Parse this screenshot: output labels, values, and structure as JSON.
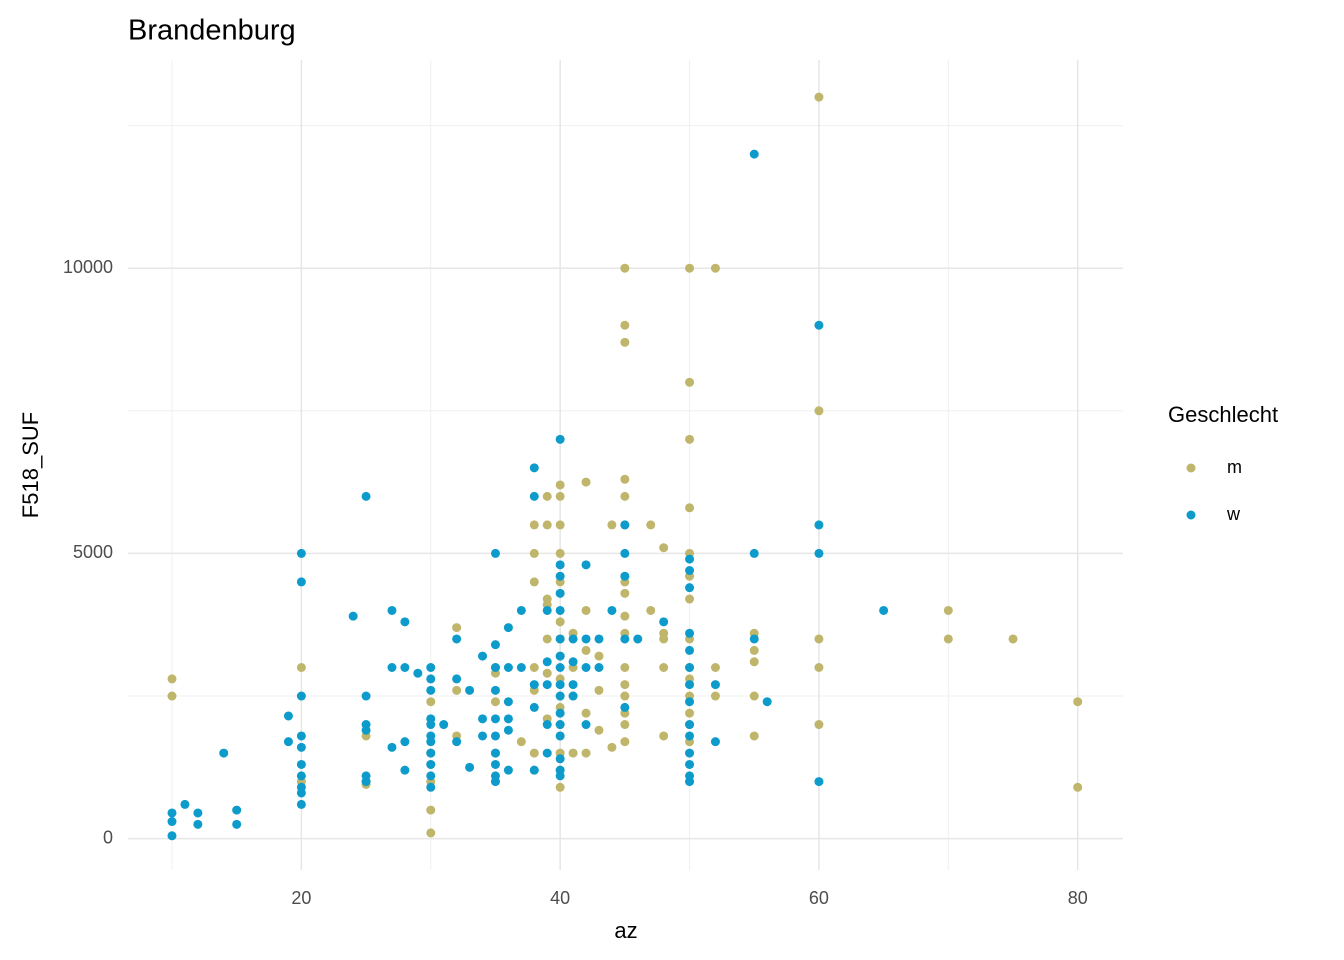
{
  "chart_data": {
    "type": "scatter",
    "title": "Brandenburg",
    "x_label": "az",
    "y_label": "F518_SUF",
    "legend_title": "Geschlecht",
    "xlim": [
      6.6,
      83.5
    ],
    "ylim": [
      -550,
      13650
    ],
    "xticks": [
      20,
      40,
      60,
      80
    ],
    "yticks": [
      0,
      5000,
      10000
    ],
    "x_minor_grid": [
      10,
      30,
      50,
      70
    ],
    "y_minor_grid": [
      2500,
      7500,
      12500
    ],
    "grid": true,
    "legend": "right",
    "series": [
      {
        "name": "m",
        "color": "#BFB56B",
        "x": [
          10,
          10,
          20,
          20,
          25,
          25,
          25,
          30,
          30,
          30,
          30,
          30,
          30,
          32,
          32,
          32,
          35,
          35,
          35,
          35,
          37,
          38,
          38,
          38,
          38,
          38,
          38,
          38,
          39,
          39,
          39,
          39,
          39,
          39,
          39,
          40,
          40,
          40,
          40,
          40,
          40,
          40,
          40,
          40,
          40,
          40,
          40,
          40,
          40,
          40,
          40,
          41,
          41,
          41,
          41,
          42,
          42,
          42,
          42,
          42,
          43,
          43,
          43,
          44,
          44,
          45,
          45,
          45,
          45,
          45,
          45,
          45,
          45,
          45,
          45,
          45,
          45,
          45,
          45,
          45,
          45,
          47,
          47,
          48,
          48,
          48,
          48,
          48,
          50,
          50,
          50,
          50,
          50,
          50,
          50,
          50,
          50,
          50,
          50,
          50,
          50,
          50,
          52,
          52,
          52,
          55,
          55,
          55,
          55,
          55,
          60,
          60,
          60,
          60,
          60,
          70,
          70,
          75,
          80,
          80
        ],
        "values": [
          2800,
          2500,
          3000,
          1000,
          1800,
          1000,
          950,
          2400,
          1500,
          1000,
          500,
          100,
          1300,
          3700,
          2600,
          1800,
          2900,
          2400,
          1500,
          3000,
          1700,
          5500,
          5000,
          4500,
          3000,
          2600,
          1500,
          1200,
          6000,
          5500,
          4200,
          4100,
          3500,
          2900,
          2100,
          6200,
          6000,
          5500,
          5000,
          4500,
          3800,
          3500,
          3200,
          2800,
          2500,
          2300,
          2000,
          1800,
          1500,
          1200,
          900,
          3600,
          3000,
          2500,
          1500,
          6250,
          4000,
          3300,
          2200,
          1500,
          3200,
          2600,
          1900,
          5500,
          1600,
          10000,
          9000,
          8700,
          6300,
          6000,
          5500,
          4500,
          4300,
          3900,
          3600,
          3000,
          2700,
          2500,
          2200,
          2000,
          1700,
          5500,
          4000,
          5100,
          3600,
          3500,
          3000,
          1800,
          10000,
          8000,
          7000,
          5800,
          5000,
          4600,
          4200,
          3500,
          3000,
          2800,
          2500,
          2200,
          2000,
          1700,
          10000,
          3000,
          2500,
          3600,
          3300,
          3100,
          2500,
          1800,
          13000,
          7500,
          3500,
          3000,
          2000,
          4000,
          3500,
          3500,
          2400,
          900
        ]
      },
      {
        "name": "w",
        "color": "#0C9BCB",
        "x": [
          10,
          10,
          10,
          11,
          12,
          12,
          14,
          15,
          15,
          19,
          19,
          20,
          20,
          20,
          20,
          20,
          20,
          20,
          20,
          20,
          20,
          24,
          25,
          25,
          25,
          25,
          25,
          25,
          27,
          27,
          27,
          28,
          28,
          28,
          28,
          29,
          30,
          30,
          30,
          30,
          30,
          30,
          30,
          30,
          30,
          30,
          30,
          31,
          32,
          32,
          32,
          33,
          33,
          34,
          34,
          34,
          35,
          35,
          35,
          35,
          35,
          35,
          35,
          35,
          35,
          35,
          36,
          36,
          36,
          36,
          36,
          36,
          37,
          37,
          38,
          38,
          38,
          38,
          38,
          39,
          39,
          39,
          39,
          39,
          40,
          40,
          40,
          40,
          40,
          40,
          40,
          40,
          40,
          40,
          40,
          40,
          40,
          40,
          40,
          40,
          41,
          41,
          41,
          41,
          42,
          42,
          42,
          42,
          43,
          43,
          44,
          45,
          45,
          45,
          45,
          45,
          46,
          48,
          50,
          50,
          50,
          50,
          50,
          50,
          50,
          50,
          50,
          50,
          50,
          50,
          50,
          50,
          52,
          52,
          55,
          55,
          55,
          56,
          60,
          60,
          60,
          60,
          65
        ],
        "values": [
          450,
          300,
          50,
          600,
          450,
          250,
          1500,
          500,
          250,
          2150,
          1700,
          5000,
          4500,
          2500,
          1800,
          1600,
          1300,
          1100,
          900,
          800,
          600,
          3900,
          6000,
          2500,
          2000,
          1900,
          1100,
          1000,
          4000,
          3000,
          1600,
          3800,
          3000,
          1700,
          1200,
          2900,
          3000,
          2800,
          2600,
          2100,
          2000,
          1800,
          1700,
          1500,
          1300,
          1100,
          900,
          2000,
          3500,
          2800,
          1700,
          2600,
          1250,
          3200,
          2100,
          1800,
          5000,
          3400,
          3000,
          2600,
          2100,
          1800,
          1500,
          1300,
          1100,
          1000,
          3700,
          3000,
          2400,
          2100,
          1900,
          1200,
          4000,
          3000,
          6500,
          6000,
          2700,
          2300,
          1200,
          4000,
          3100,
          2700,
          2000,
          1500,
          7000,
          4800,
          4600,
          4300,
          4000,
          3500,
          3200,
          3000,
          2700,
          2500,
          2200,
          2000,
          1800,
          1400,
          1200,
          1100,
          3500,
          3100,
          2700,
          2500,
          4800,
          3500,
          3000,
          2000,
          3500,
          3000,
          4000,
          5500,
          5000,
          4600,
          3500,
          2300,
          3500,
          3800,
          4900,
          4700,
          4400,
          3600,
          3300,
          3000,
          2700,
          2400,
          2000,
          1800,
          1500,
          1300,
          1100,
          1000,
          2700,
          1700,
          12000,
          5000,
          3500,
          2400,
          9000,
          5500,
          5000,
          1000,
          4000
        ]
      }
    ]
  }
}
